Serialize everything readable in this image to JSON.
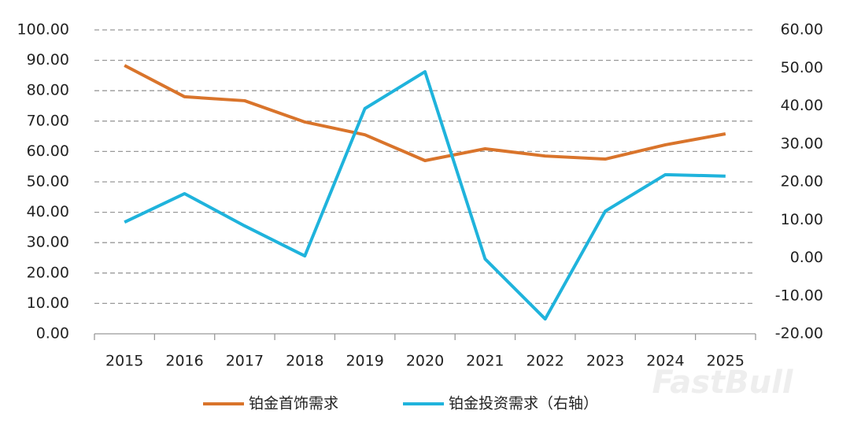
{
  "chart_data": {
    "type": "line",
    "categories": [
      "2015",
      "2016",
      "2017",
      "2018",
      "2019",
      "2020",
      "2021",
      "2022",
      "2023",
      "2024",
      "2025"
    ],
    "series": [
      {
        "name": "铂金首饰需求",
        "color": "#d9742b",
        "values": [
          88.3,
          78.0,
          76.7,
          69.7,
          65.5,
          57.0,
          60.9,
          58.5,
          57.5,
          62.2,
          65.8
        ]
      },
      {
        "name": "铂金投资需求（右轴）",
        "color": "#1fb3dc",
        "axis": "y2",
        "values": [
          9.4,
          16.9,
          8.4,
          0.5,
          39.3,
          49.0,
          -0.3,
          -16.1,
          12.3,
          21.9,
          21.5
        ]
      }
    ],
    "ylim": [
      0,
      100
    ],
    "yticks": [
      {
        "value": 0,
        "label": "0.00"
      },
      {
        "value": 10,
        "label": "10.00"
      },
      {
        "value": 20,
        "label": "20.00"
      },
      {
        "value": 30,
        "label": "30.00"
      },
      {
        "value": 40,
        "label": "40.00"
      },
      {
        "value": 50,
        "label": "50.00"
      },
      {
        "value": 60,
        "label": "60.00"
      },
      {
        "value": 70,
        "label": "70.00"
      },
      {
        "value": 80,
        "label": "80.00"
      },
      {
        "value": 90,
        "label": "90.00"
      },
      {
        "value": 100,
        "label": "100.00"
      }
    ],
    "y2lim": [
      -20,
      60
    ],
    "y2ticks": [
      {
        "value": -20,
        "label": "-20.00"
      },
      {
        "value": -10,
        "label": "-10.00"
      },
      {
        "value": 0,
        "label": "0.00"
      },
      {
        "value": 10,
        "label": "10.00"
      },
      {
        "value": 20,
        "label": "20.00"
      },
      {
        "value": 30,
        "label": "30.00"
      },
      {
        "value": 40,
        "label": "40.00"
      },
      {
        "value": 50,
        "label": "50.00"
      },
      {
        "value": 60,
        "label": "60.00"
      }
    ],
    "grid": true,
    "legend": "bottom",
    "watermark": "FastBull"
  }
}
